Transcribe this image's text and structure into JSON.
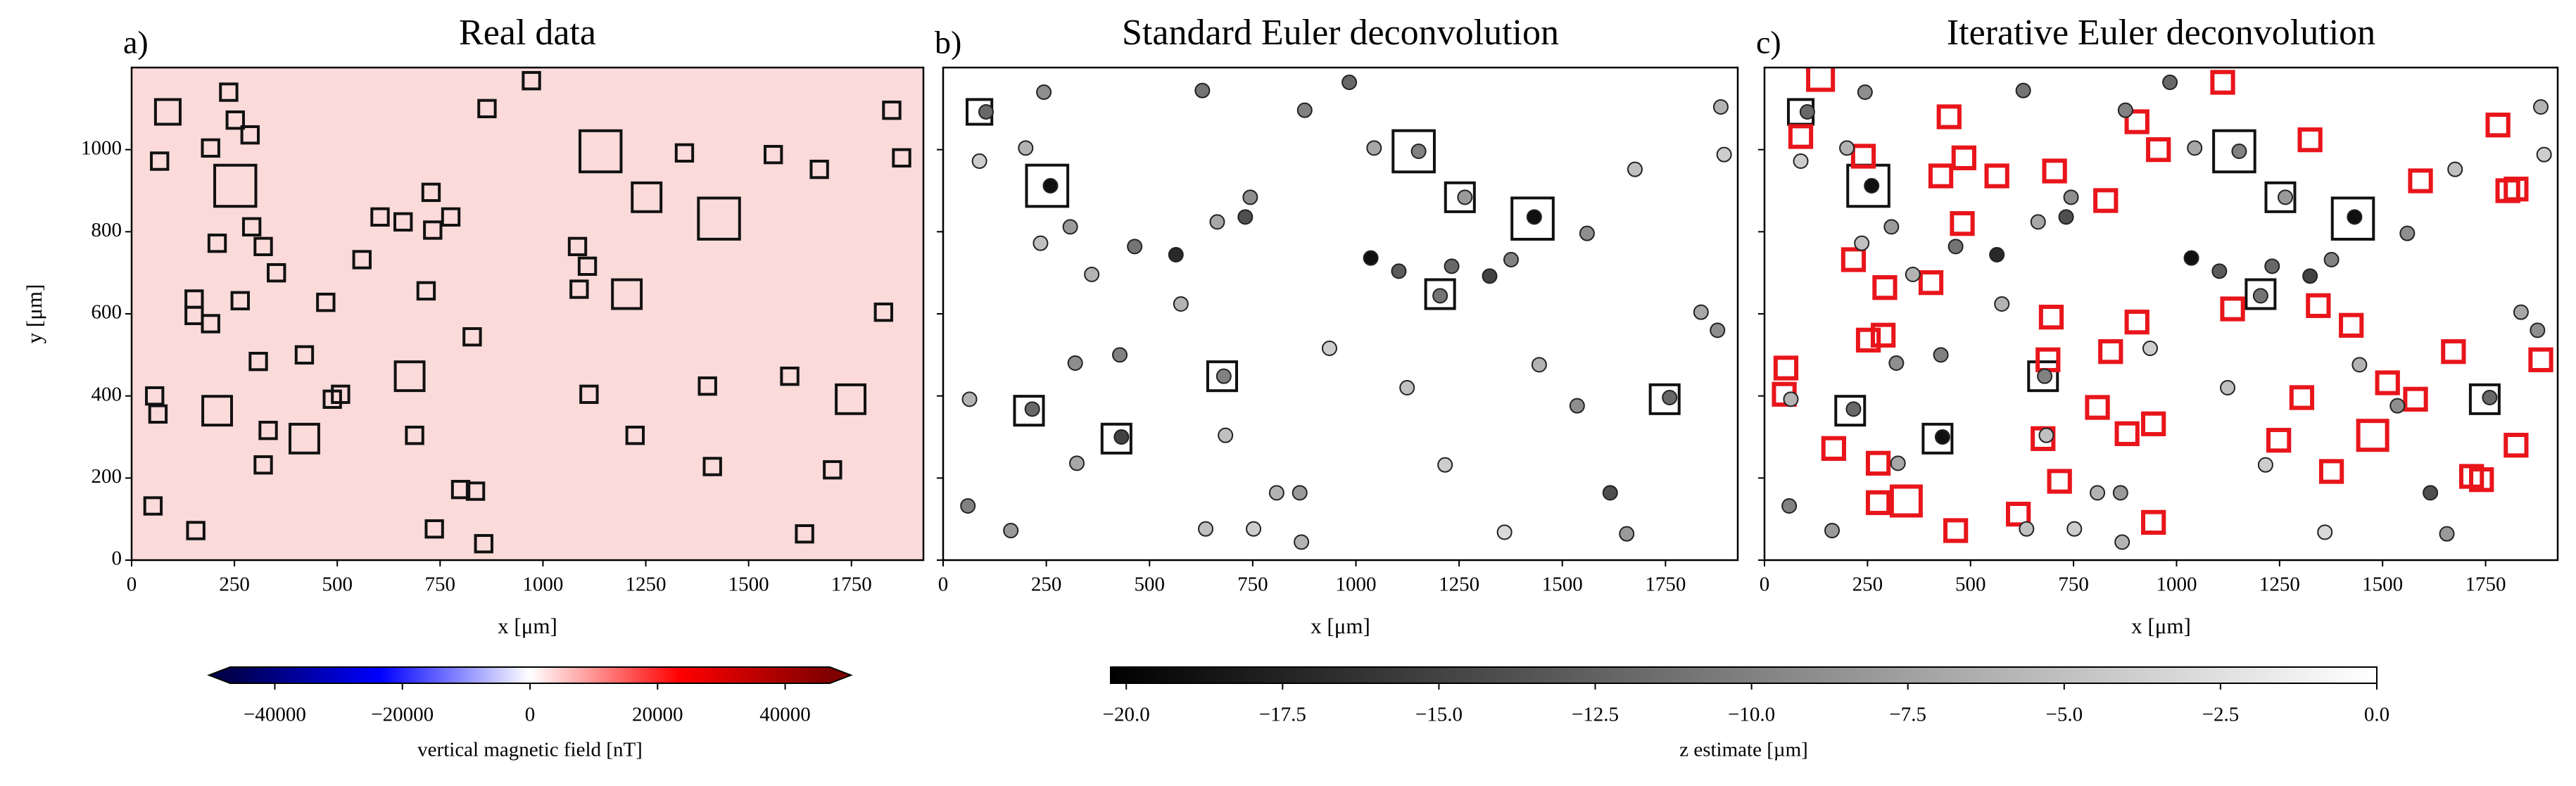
{
  "chart_data": [
    {
      "type": "windows",
      "panel_label": "a)",
      "title": "Real data",
      "xlabel": "x [μm]",
      "ylabel": "y [μm]",
      "xlim": [
        0,
        1925
      ],
      "ylim": [
        0,
        1200
      ],
      "xticks": [
        0,
        250,
        500,
        750,
        1000,
        1250,
        1500,
        1750
      ],
      "yticks": [
        0,
        200,
        400,
        600,
        800,
        1000
      ],
      "background": "#fbdada",
      "box_color": "#111111",
      "windows": {
        "x": [
          88,
          252,
          236,
          192,
          68,
          252,
          288,
          208,
          292,
          320,
          352,
          264,
          152,
          152,
          192,
          308,
          420,
          472,
          508,
          488,
          208,
          420,
          332,
          320,
          56,
          64,
          52,
          156,
          676,
          688,
          736,
          800,
          836,
          856,
          828,
          716,
          560,
          604,
          660,
          728,
          776,
          732,
          864,
          972,
          1140,
          1252,
          1428,
          1204,
          1112,
          1224,
          1412,
          1400,
          1600,
          1748,
          1704,
          1636,
          1848,
          1872,
          1672,
          1828,
          1344,
          1560,
          1084,
          1108,
          1088
        ],
        "y": [
          1092,
          912,
          1140,
          1004,
          972,
          1072,
          1036,
          772,
          812,
          764,
          700,
          632,
          636,
          596,
          576,
          484,
          500,
          628,
          404,
          392,
          364,
          296,
          316,
          232,
          400,
          356,
          132,
          72,
          448,
          304,
          76,
          172,
          168,
          40,
          544,
          656,
          732,
          836,
          824,
          896,
          836,
          804,
          1100,
          1168,
          996,
          884,
          832,
          648,
          404,
          304,
          228,
          424,
          448,
          392,
          220,
          64,
          1096,
          980,
          952,
          604,
          992,
          988,
          764,
          716,
          660
        ],
        "size": [
          60,
          100,
          40,
          40,
          40,
          40,
          40,
          40,
          40,
          40,
          40,
          40,
          40,
          40,
          40,
          40,
          40,
          40,
          40,
          40,
          70,
          70,
          40,
          40,
          40,
          40,
          40,
          40,
          70,
          40,
          40,
          40,
          40,
          40,
          40,
          40,
          40,
          40,
          40,
          40,
          40,
          40,
          40,
          40,
          100,
          70,
          100,
          70,
          40,
          40,
          40,
          40,
          40,
          70,
          40,
          40,
          40,
          40,
          40,
          40,
          40,
          40,
          40,
          40,
          40
        ]
      }
    },
    {
      "type": "scatter",
      "panel_label": "b)",
      "title": "Standard Euler deconvolution",
      "xlabel": "x [μm]",
      "xlim": [
        0,
        1925
      ],
      "ylim": [
        0,
        1200
      ],
      "xticks": [
        0,
        250,
        500,
        750,
        1000,
        1250,
        1500,
        1750
      ],
      "yticks": [
        0,
        200,
        400,
        600,
        800,
        1000
      ],
      "yticklabels": false,
      "box_color": "#111111",
      "windows": {
        "x": [
          88,
          252,
          208,
          420,
          676,
          1140,
          1252,
          1428,
          1204,
          1748
        ],
        "y": [
          1092,
          912,
          364,
          296,
          448,
          996,
          884,
          832,
          648,
          392
        ],
        "size": [
          60,
          100,
          70,
          70,
          70,
          100,
          70,
          100,
          70,
          70
        ]
      },
      "points": {
        "x": [
          104,
          244,
          200,
          88,
          260,
          236,
          308,
          360,
          464,
          564,
          576,
          664,
          744,
          732,
          628,
          876,
          984,
          1044,
          1152,
          1264,
          1432,
          1204,
          1036,
          1104,
          1232,
          1324,
          1376,
          1560,
          1676,
          1884,
          1892,
          1836,
          1876,
          1760,
          1616,
          1656,
          1360,
          1216,
          1444,
          1536,
          1124,
          936,
          808,
          864,
          752,
          868,
          684,
          680,
          432,
          324,
          320,
          428,
          216,
          64,
          60,
          164,
          636
        ],
        "y": [
          1092,
          1140,
          1004,
          972,
          912,
          772,
          812,
          696,
          764,
          744,
          624,
          824,
          884,
          836,
          1144,
          1096,
          1164,
          1004,
          996,
          884,
          836,
          644,
          736,
          704,
          716,
          692,
          732,
          796,
          952,
          1104,
          988,
          604,
          560,
          396,
          164,
          64,
          68,
          232,
          476,
          376,
          420,
          516,
          164,
          164,
          76,
          44,
          304,
          448,
          300,
          236,
          480,
          500,
          368,
          392,
          132,
          72,
          76
        ],
        "z": [
          -12,
          -9,
          -6,
          -4,
          -19,
          -5,
          -8,
          -6,
          -11,
          -17,
          -6,
          -7,
          -9,
          -14,
          -11,
          -10,
          -12,
          -7,
          -10,
          -8,
          -19,
          -11,
          -19,
          -13,
          -12,
          -15,
          -10,
          -9,
          -5,
          -6,
          -4,
          -7,
          -9,
          -12,
          -14,
          -8,
          -3,
          -4,
          -6,
          -9,
          -5,
          -4,
          -6,
          -8,
          -4,
          -6,
          -5,
          -10,
          -15,
          -7,
          -9,
          -10,
          -12,
          -6,
          -10,
          -8,
          -5
        ]
      }
    },
    {
      "type": "scatter",
      "panel_label": "c)",
      "title": "Iterative Euler deconvolution",
      "xlabel": "x [μm]",
      "xlim": [
        0,
        1925
      ],
      "ylim": [
        0,
        1200
      ],
      "xticks": [
        0,
        250,
        500,
        750,
        1000,
        1250,
        1500,
        1750
      ],
      "yticks": [
        0,
        200,
        400,
        600,
        800,
        1000
      ],
      "yticklabels": false,
      "box_color": "#111111",
      "highlight_color": "#e8151b",
      "windows": {
        "x": [
          88,
          252,
          208,
          420,
          676,
          1140,
          1252,
          1428,
          1204,
          1748
        ],
        "y": [
          1092,
          912,
          364,
          296,
          448,
          996,
          884,
          832,
          648,
          392
        ],
        "size": [
          60,
          100,
          70,
          70,
          70,
          100,
          70,
          100,
          70,
          70
        ]
      },
      "highlights": {
        "x": [
          136,
          88,
          240,
          448,
          484,
          564,
          428,
          704,
          828,
          904,
          956,
          1112,
          1324,
          216,
          292,
          404,
          480,
          696,
          252,
          288,
          688,
          840,
          904,
          1136,
          1344,
          1424,
          1512,
          1672,
          1884,
          52,
          48,
          168,
          276,
          676,
          716,
          880,
          944,
          808,
          344,
          276,
          464,
          616,
          1304,
          1248,
          1476,
          1716,
          1740,
          1580,
          1376,
          944,
          1824,
          1804,
          1824,
          1592,
          1780
        ],
        "y": [
          1176,
          1032,
          984,
          1080,
          980,
          936,
          936,
          948,
          876,
          1068,
          1000,
          1164,
          1024,
          732,
          664,
          676,
          820,
          592,
          536,
          548,
          488,
          508,
          580,
          612,
          620,
          572,
          432,
          508,
          488,
          468,
          404,
          272,
          236,
          296,
          192,
          308,
          332,
          372,
          144,
          140,
          72,
          112,
          396,
          292,
          304,
          204,
          196,
          392,
          216,
          92,
          280,
          900,
          904,
          924,
          1060
        ],
        "size": [
          60,
          50,
          50,
          50,
          50,
          50,
          50,
          50,
          50,
          50,
          50,
          50,
          50,
          50,
          50,
          50,
          50,
          50,
          50,
          50,
          50,
          50,
          50,
          50,
          50,
          50,
          50,
          50,
          50,
          50,
          50,
          50,
          50,
          50,
          50,
          50,
          50,
          50,
          70,
          50,
          50,
          50,
          50,
          50,
          70,
          50,
          50,
          50,
          50,
          50,
          50,
          50,
          50,
          50,
          50
        ]
      },
      "points": {
        "x": [
          104,
          244,
          200,
          88,
          260,
          236,
          308,
          360,
          464,
          564,
          576,
          664,
          744,
          732,
          628,
          876,
          984,
          1044,
          1152,
          1264,
          1432,
          1204,
          1036,
          1104,
          1232,
          1324,
          1376,
          1560,
          1676,
          1884,
          1892,
          1836,
          1876,
          1760,
          1616,
          1656,
          1360,
          1216,
          1444,
          1536,
          1124,
          936,
          808,
          864,
          752,
          868,
          684,
          680,
          432,
          324,
          320,
          428,
          216,
          64,
          60,
          164,
          636
        ],
        "y": [
          1092,
          1140,
          1004,
          972,
          912,
          772,
          812,
          696,
          764,
          744,
          624,
          824,
          884,
          836,
          1144,
          1096,
          1164,
          1004,
          996,
          884,
          836,
          644,
          736,
          704,
          716,
          692,
          732,
          796,
          952,
          1104,
          988,
          604,
          560,
          396,
          164,
          64,
          68,
          232,
          476,
          376,
          420,
          516,
          164,
          164,
          76,
          44,
          304,
          448,
          300,
          236,
          480,
          500,
          368,
          392,
          132,
          72,
          76
        ],
        "z": [
          -12,
          -9,
          -6,
          -4,
          -19,
          -5,
          -8,
          -6,
          -11,
          -17,
          -6,
          -7,
          -9,
          -14,
          -11,
          -10,
          -12,
          -7,
          -10,
          -8,
          -19,
          -11,
          -19,
          -13,
          -12,
          -15,
          -10,
          -9,
          -5,
          -6,
          -4,
          -7,
          -9,
          -12,
          -14,
          -8,
          -3,
          -4,
          -6,
          -9,
          -5,
          -4,
          -6,
          -8,
          -4,
          -6,
          -5,
          -10,
          -19,
          -7,
          -9,
          -10,
          -12,
          -6,
          -10,
          -8,
          -5
        ]
      }
    },
    {
      "type": "colorbar",
      "label": "vertical magnetic field [nT]",
      "xlim": [
        -47000,
        47000
      ],
      "extend": "both",
      "colors": [
        "#00004c",
        "#0000ff",
        "#ffffff",
        "#ff0000",
        "#7f0000"
      ],
      "xticks": [
        {
          "value": -40000,
          "label": "−40000"
        },
        {
          "value": -20000,
          "label": "−20000"
        },
        0,
        20000,
        40000
      ]
    },
    {
      "type": "colorbar",
      "label": "z estimate [µm]",
      "xlim": [
        -20.25,
        0
      ],
      "colors": [
        "#000000",
        "#ffffff"
      ],
      "xticks": [
        {
          "value": -20,
          "label": "−20.0"
        },
        {
          "value": -17.5,
          "label": "−17.5"
        },
        {
          "value": -15,
          "label": "−15.0"
        },
        {
          "value": -12.5,
          "label": "−12.5"
        },
        {
          "value": -10,
          "label": "−10.0"
        },
        {
          "value": -7.5,
          "label": "−7.5"
        },
        {
          "value": -5,
          "label": "−5.0"
        },
        {
          "value": -2.5,
          "label": "−2.5"
        },
        {
          "value": 0,
          "label": "0.0"
        }
      ]
    }
  ]
}
